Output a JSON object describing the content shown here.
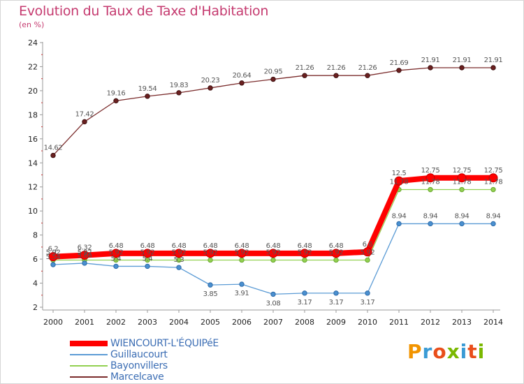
{
  "title": "Evolution du Taux de Taxe d'Habitation",
  "subtitle": "(en %)",
  "logo": {
    "text": "Proxiti",
    "colors": [
      "#f29400",
      "#3a9bd5",
      "#e94e1b",
      "#7ab800",
      "#3a9bd5",
      "#e94e1b",
      "#7ab800"
    ]
  },
  "chart_data": {
    "type": "line",
    "x": [
      "2000",
      "2001",
      "2002",
      "2003",
      "2004",
      "2005",
      "2006",
      "2007",
      "2008",
      "2009",
      "2010",
      "2011",
      "2012",
      "2013",
      "2014"
    ],
    "ylim": [
      2,
      24
    ],
    "yticks": [
      "2",
      "4",
      "6",
      "8",
      "10",
      "12",
      "14",
      "16",
      "18",
      "20",
      "22",
      "24"
    ],
    "grid": false,
    "legend_position": "bottom-left",
    "series": [
      {
        "name": "WIENCOURT-L'ÉQUIPéE",
        "color": "#ff0000",
        "values": [
          6.2,
          6.32,
          6.48,
          6.48,
          6.48,
          6.48,
          6.48,
          6.48,
          6.48,
          6.48,
          6.6,
          12.5,
          12.75,
          12.75,
          12.75
        ],
        "labels": [
          "6.2",
          "6.32",
          "6.48",
          "6.48",
          "6.48",
          "6.48",
          "6.48",
          "6.48",
          "6.48",
          "6.48",
          "6.6",
          "12.5",
          "12.75",
          "12.75",
          "12.75"
        ]
      },
      {
        "name": "Guillaucourt",
        "color": "#5b9bd5",
        "values": [
          5.54,
          5.66,
          5.4,
          5.4,
          5.3,
          3.85,
          3.91,
          3.08,
          3.17,
          3.17,
          3.17,
          8.94,
          8.94,
          8.94,
          8.94
        ],
        "labels": [
          "5.54",
          "5.66",
          "5.4",
          "5.4",
          "5.3",
          "3.85",
          "3.91",
          "3.08",
          "3.17",
          "3.17",
          "3.17",
          "8.94",
          "8.94",
          "8.94",
          "8.94"
        ]
      },
      {
        "name": "Bayonvillers",
        "color": "#92d050",
        "values": [
          5.92,
          5.92,
          5.92,
          5.92,
          5.92,
          5.92,
          5.92,
          5.92,
          5.92,
          5.92,
          5.92,
          11.78,
          11.78,
          11.78,
          11.78
        ],
        "labels": [
          "5.92",
          "5.92",
          "5.92",
          "5.92",
          "5.92",
          "5.92",
          "5.92",
          "5.92",
          "5.92",
          "5.92",
          "5.92",
          "11.78",
          "11.78",
          "11.78",
          "11.78"
        ]
      },
      {
        "name": "Marcelcave",
        "color": "#7b2c2c",
        "values": [
          14.62,
          17.42,
          19.16,
          19.54,
          19.83,
          20.23,
          20.64,
          20.95,
          21.26,
          21.26,
          21.26,
          21.69,
          21.91,
          21.91,
          21.91
        ],
        "labels": [
          "14.62",
          "17.42",
          "19.16",
          "19.54",
          "19.83",
          "20.23",
          "20.64",
          "20.95",
          "21.26",
          "21.26",
          "21.26",
          "21.69",
          "21.91",
          "21.91",
          "21.91"
        ]
      }
    ]
  }
}
